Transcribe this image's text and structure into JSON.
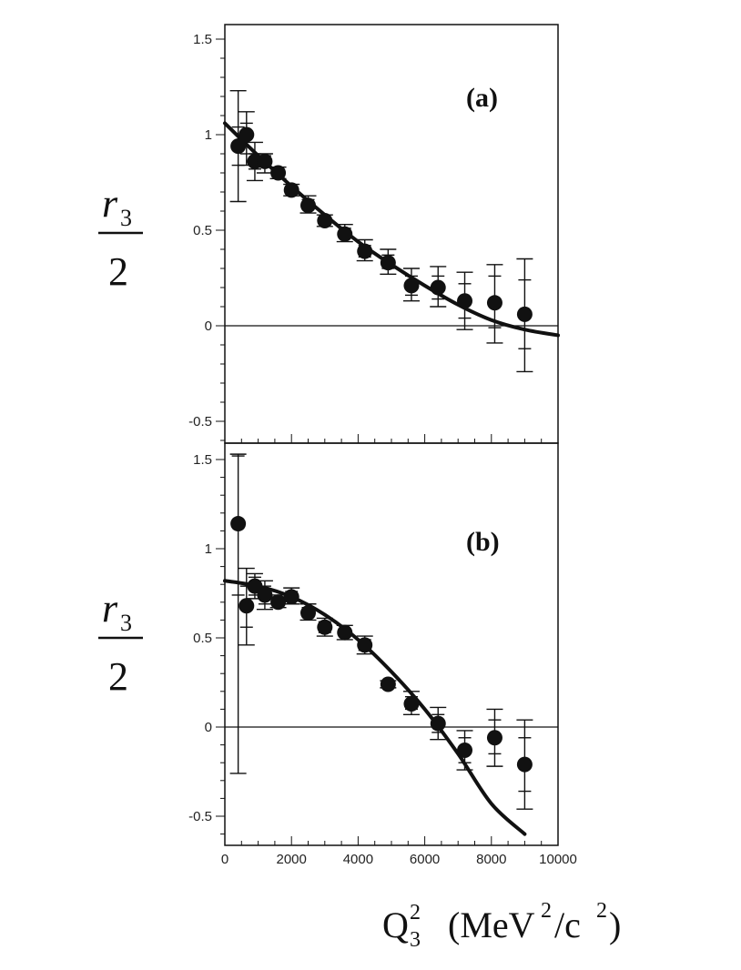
{
  "chart_data": [
    {
      "type": "scatter",
      "panel_label": "(a)",
      "ylabel": {
        "numerator": "r",
        "subscript": "3",
        "denominator": "2"
      },
      "xlim": [
        0,
        10000
      ],
      "ylim": [
        -0.6,
        1.5
      ],
      "yticks": [
        1.5,
        1,
        0.5,
        0,
        -0.5
      ],
      "ytick_labels": [
        "1.5",
        "1",
        "0.5",
        "0",
        "-0.5"
      ],
      "zero_line": true,
      "points": [
        {
          "x": 400,
          "y": 0.94,
          "lo": 0.65,
          "hi": 1.23,
          "lo2": 0.84,
          "hi2": 1.04
        },
        {
          "x": 650,
          "y": 1.0,
          "lo": 0.84,
          "hi": 1.12,
          "lo2": 0.9,
          "hi2": 1.06
        },
        {
          "x": 900,
          "y": 0.86,
          "lo": 0.76,
          "hi": 0.96,
          "lo2": 0.82,
          "hi2": 0.9
        },
        {
          "x": 1200,
          "y": 0.86,
          "lo": 0.8,
          "hi": 0.9,
          "lo2": 0.83,
          "hi2": 0.89
        },
        {
          "x": 1600,
          "y": 0.8,
          "lo": 0.77,
          "hi": 0.83,
          "lo2": 0.78,
          "hi2": 0.82
        },
        {
          "x": 2000,
          "y": 0.71,
          "lo": 0.68,
          "hi": 0.74,
          "lo2": 0.69,
          "hi2": 0.73
        },
        {
          "x": 2500,
          "y": 0.63,
          "lo": 0.59,
          "hi": 0.68,
          "lo2": 0.61,
          "hi2": 0.66
        },
        {
          "x": 3000,
          "y": 0.55,
          "lo": 0.52,
          "hi": 0.58,
          "lo2": 0.53,
          "hi2": 0.57
        },
        {
          "x": 3600,
          "y": 0.48,
          "lo": 0.44,
          "hi": 0.53,
          "lo2": 0.46,
          "hi2": 0.51
        },
        {
          "x": 4200,
          "y": 0.39,
          "lo": 0.34,
          "hi": 0.45,
          "lo2": 0.36,
          "hi2": 0.42
        },
        {
          "x": 4900,
          "y": 0.33,
          "lo": 0.27,
          "hi": 0.4,
          "lo2": 0.3,
          "hi2": 0.37
        },
        {
          "x": 5600,
          "y": 0.21,
          "lo": 0.13,
          "hi": 0.3,
          "lo2": 0.16,
          "hi2": 0.26
        },
        {
          "x": 6400,
          "y": 0.2,
          "lo": 0.1,
          "hi": 0.31,
          "lo2": 0.14,
          "hi2": 0.26
        },
        {
          "x": 7200,
          "y": 0.13,
          "lo": -0.02,
          "hi": 0.28,
          "lo2": 0.04,
          "hi2": 0.22
        },
        {
          "x": 8100,
          "y": 0.12,
          "lo": -0.09,
          "hi": 0.32,
          "lo2": -0.01,
          "hi2": 0.26
        },
        {
          "x": 9000,
          "y": 0.06,
          "lo": -0.24,
          "hi": 0.35,
          "lo2": -0.12,
          "hi2": 0.24
        }
      ],
      "fit_curve": [
        [
          0,
          1.06
        ],
        [
          1000,
          0.89
        ],
        [
          2000,
          0.73
        ],
        [
          3000,
          0.58
        ],
        [
          4000,
          0.44
        ],
        [
          5000,
          0.32
        ],
        [
          6000,
          0.21
        ],
        [
          7000,
          0.11
        ],
        [
          8000,
          0.03
        ],
        [
          9000,
          -0.02
        ],
        [
          10000,
          -0.05
        ]
      ]
    },
    {
      "type": "scatter",
      "panel_label": "(b)",
      "ylabel": {
        "numerator": "r",
        "subscript": "3",
        "denominator": "2"
      },
      "xlabel": {
        "main": "Q",
        "sup": "2",
        "sub": "3",
        "unit_open": "(MeV",
        "unit_sup1": "2",
        "unit_mid": "/c",
        "unit_sup2": "2",
        "unit_close": ")"
      },
      "xlim": [
        0,
        10000
      ],
      "ylim": [
        -0.65,
        1.6
      ],
      "yticks": [
        1.5,
        1,
        0.5,
        0,
        -0.5
      ],
      "ytick_labels": [
        "1.5",
        "1",
        "0.5",
        "0",
        "-0.5"
      ],
      "xticks": [
        0,
        2000,
        4000,
        6000,
        8000,
        10000
      ],
      "xtick_labels": [
        "0",
        "2000",
        "4000",
        "6000",
        "8000",
        "10000"
      ],
      "zero_line": true,
      "points": [
        {
          "x": 400,
          "y": 1.14,
          "lo": -0.26,
          "hi": 1.53,
          "lo2": 0.74,
          "hi2": 1.52
        },
        {
          "x": 650,
          "y": 0.68,
          "lo": 0.46,
          "hi": 0.89,
          "lo2": 0.56,
          "hi2": 0.79
        },
        {
          "x": 900,
          "y": 0.79,
          "lo": 0.72,
          "hi": 0.86,
          "lo2": 0.74,
          "hi2": 0.84
        },
        {
          "x": 1200,
          "y": 0.74,
          "lo": 0.66,
          "hi": 0.82,
          "lo2": 0.69,
          "hi2": 0.79
        },
        {
          "x": 1600,
          "y": 0.7,
          "lo": 0.67,
          "hi": 0.74,
          "lo2": 0.68,
          "hi2": 0.73
        },
        {
          "x": 2000,
          "y": 0.73,
          "lo": 0.69,
          "hi": 0.78,
          "lo2": 0.71,
          "hi2": 0.76
        },
        {
          "x": 2500,
          "y": 0.64,
          "lo": 0.6,
          "hi": 0.69,
          "lo2": 0.62,
          "hi2": 0.67
        },
        {
          "x": 3000,
          "y": 0.56,
          "lo": 0.51,
          "hi": 0.61,
          "lo2": 0.53,
          "hi2": 0.59
        },
        {
          "x": 3600,
          "y": 0.53,
          "lo": 0.49,
          "hi": 0.57,
          "lo2": 0.51,
          "hi2": 0.55
        },
        {
          "x": 4200,
          "y": 0.46,
          "lo": 0.41,
          "hi": 0.51,
          "lo2": 0.43,
          "hi2": 0.49
        },
        {
          "x": 4900,
          "y": 0.24,
          "lo": 0.22,
          "hi": 0.26,
          "lo2": 0.23,
          "hi2": 0.25
        },
        {
          "x": 5600,
          "y": 0.13,
          "lo": 0.07,
          "hi": 0.2,
          "lo2": 0.1,
          "hi2": 0.17
        },
        {
          "x": 6400,
          "y": 0.02,
          "lo": -0.07,
          "hi": 0.11,
          "lo2": -0.03,
          "hi2": 0.07
        },
        {
          "x": 7200,
          "y": -0.13,
          "lo": -0.24,
          "hi": -0.02,
          "lo2": -0.2,
          "hi2": -0.06
        },
        {
          "x": 8100,
          "y": -0.06,
          "lo": -0.22,
          "hi": 0.1,
          "lo2": -0.15,
          "hi2": 0.04
        },
        {
          "x": 9000,
          "y": -0.21,
          "lo": -0.46,
          "hi": 0.04,
          "lo2": -0.36,
          "hi2": -0.06
        }
      ],
      "fit_curve": [
        [
          0,
          0.82
        ],
        [
          1000,
          0.79
        ],
        [
          2000,
          0.73
        ],
        [
          3000,
          0.63
        ],
        [
          4000,
          0.49
        ],
        [
          5000,
          0.31
        ],
        [
          6000,
          0.1
        ],
        [
          7000,
          -0.15
        ],
        [
          8000,
          -0.43
        ],
        [
          9000,
          -0.6
        ]
      ]
    }
  ]
}
